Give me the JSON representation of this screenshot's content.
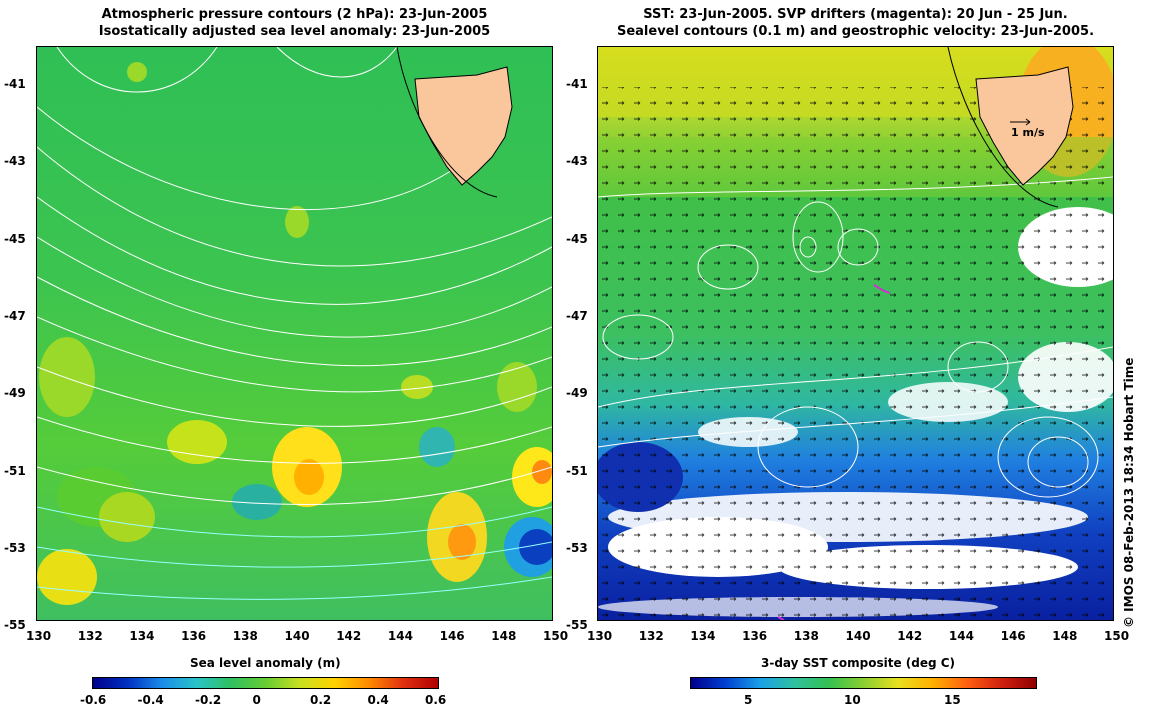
{
  "left_panel": {
    "title_line1": "Atmospheric pressure contours (2 hPa): 23-Jun-2005",
    "title_line2": "Isostatically adjusted sea level anomaly: 23-Jun-2005",
    "colorbar_title": "Sea level anomaly (m)",
    "colorbar_ticks": [
      "-0.6",
      "-0.4",
      "-0.2",
      "0",
      "0.2",
      "0.4",
      "0.6"
    ]
  },
  "right_panel": {
    "title_line1": "SST: 23-Jun-2005. SVP drifters (magenta): 20 Jun - 25 Jun.",
    "title_line2": "Sealevel contours (0.1 m) and geostrophic velocity: 23-Jun-2005.",
    "colorbar_title": "3-day SST composite (deg C)",
    "colorbar_ticks": [
      "5",
      "10",
      "15"
    ],
    "velocity_scale_label": "1 m/s"
  },
  "axes": {
    "lat_ticks": [
      "-41",
      "-43",
      "-45",
      "-47",
      "-49",
      "-51",
      "-53",
      "-55"
    ],
    "lon_ticks": [
      "130",
      "132",
      "134",
      "136",
      "138",
      "140",
      "142",
      "144",
      "146",
      "148",
      "150"
    ]
  },
  "credit": "© IMOS 08-Feb-2013 18:34 Hobart Time",
  "colors": {
    "land": "#f9c79b",
    "ocean_mid": "#33c24a",
    "pressure_contour": "#ffffff",
    "drifter": "#cc33cc"
  }
}
